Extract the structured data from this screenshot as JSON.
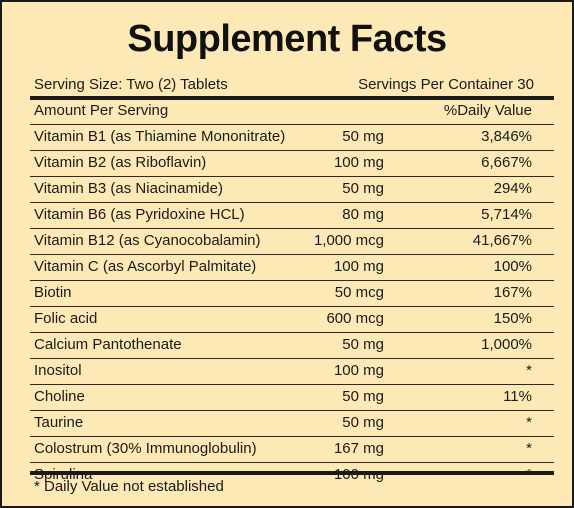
{
  "title": "Supplement Facts",
  "serving_size": "Serving Size: Two (2) Tablets",
  "servings_per_container": "Servings Per Container  30",
  "header": {
    "amount_per_serving": "Amount  Per Serving",
    "daily_value": "%Daily Value"
  },
  "nutrients": [
    {
      "name": "Vitamin B1 (as Thiamine Mononitrate)",
      "amount": "50 mg",
      "dv": "3,846%"
    },
    {
      "name": "Vitamin B2 (as Riboflavin)",
      "amount": "100 mg",
      "dv": "6,667%"
    },
    {
      "name": "Vitamin B3 (as Niacinamide)",
      "amount": "50 mg",
      "dv": "294%"
    },
    {
      "name": "Vitamin B6 (as Pyridoxine HCL)",
      "amount": "80 mg",
      "dv": "5,714%"
    },
    {
      "name": "Vitamin B12 (as Cyanocobalamin)",
      "amount": "1,000 mcg",
      "dv": "41,667%"
    },
    {
      "name": "Vitamin C (as Ascorbyl Palmitate)",
      "amount": "100 mg",
      "dv": "100%"
    },
    {
      "name": "Biotin",
      "amount": "50 mcg",
      "dv": "167%"
    },
    {
      "name": "Folic acid",
      "amount": "600 mcg",
      "dv": "150%"
    },
    {
      "name": "Calcium Pantothenate",
      "amount": "50 mg",
      "dv": "1,000%"
    },
    {
      "name": "Inositol",
      "amount": "100 mg",
      "dv": "*"
    },
    {
      "name": "Choline",
      "amount": "50 mg",
      "dv": "11%"
    },
    {
      "name": "Taurine",
      "amount": "50 mg",
      "dv": "*"
    },
    {
      "name": "Colostrum (30% Immunoglobulin)",
      "amount": "167 mg",
      "dv": "*"
    },
    {
      "name": "Spirulina",
      "amount": "100 mg",
      "dv": "*"
    }
  ],
  "footnote": "* Daily Value not established"
}
